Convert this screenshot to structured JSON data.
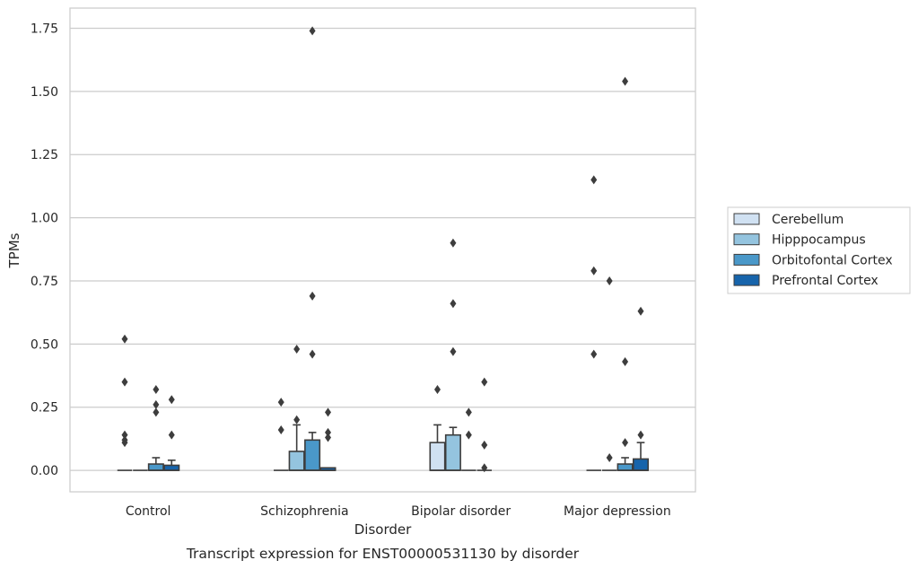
{
  "chart_data": {
    "type": "box",
    "title": "",
    "caption": "Transcript expression for ENST00000531130 by disorder",
    "xlabel": "Disorder",
    "ylabel": "TPMs",
    "ylim": [
      -0.085,
      1.83
    ],
    "yticks": [
      0.0,
      0.25,
      0.5,
      0.75,
      1.0,
      1.25,
      1.5,
      1.75
    ],
    "ytick_labels": [
      "0.00",
      "0.25",
      "0.50",
      "0.75",
      "1.00",
      "1.25",
      "1.50",
      "1.75"
    ],
    "grid": "horizontal",
    "legend_position": "right",
    "categories": [
      "Control",
      "Schizophrenia",
      "Bipolar disorder",
      "Major depression"
    ],
    "series": [
      {
        "name": "Cerebellum",
        "color": "#d0e1f2",
        "boxes": [
          {
            "q1": 0,
            "median": 0,
            "q3": 0,
            "whisker_low": 0,
            "whisker_high": 0,
            "outliers": [
              0.52,
              0.35,
              0.14,
              0.12,
              0.11
            ]
          },
          {
            "q1": 0,
            "median": 0,
            "q3": 0,
            "whisker_low": 0,
            "whisker_high": 0,
            "outliers": [
              0.27,
              0.16
            ]
          },
          {
            "q1": 0,
            "median": 0,
            "q3": 0.11,
            "whisker_low": 0,
            "whisker_high": 0.18,
            "outliers": [
              0.32
            ]
          },
          {
            "q1": 0,
            "median": 0,
            "q3": 0,
            "whisker_low": 0,
            "whisker_high": 0,
            "outliers": [
              1.15,
              0.79,
              0.46
            ]
          }
        ]
      },
      {
        "name": "Hipppocampus",
        "color": "#94c4df",
        "boxes": [
          {
            "q1": 0,
            "median": 0,
            "q3": 0,
            "whisker_low": 0,
            "whisker_high": 0,
            "outliers": []
          },
          {
            "q1": 0,
            "median": 0,
            "q3": 0.075,
            "whisker_low": 0,
            "whisker_high": 0.18,
            "outliers": [
              0.48,
              0.2
            ]
          },
          {
            "q1": 0,
            "median": 0,
            "q3": 0.14,
            "whisker_low": 0,
            "whisker_high": 0.17,
            "outliers": [
              0.9,
              0.66,
              0.47
            ]
          },
          {
            "q1": 0,
            "median": 0,
            "q3": 0,
            "whisker_low": 0,
            "whisker_high": 0,
            "outliers": [
              0.75,
              0.05
            ]
          }
        ]
      },
      {
        "name": "Orbitofontal Cortex",
        "color": "#4a98c9",
        "boxes": [
          {
            "q1": 0,
            "median": 0,
            "q3": 0.025,
            "whisker_low": 0,
            "whisker_high": 0.05,
            "outliers": [
              0.32,
              0.26,
              0.23
            ]
          },
          {
            "q1": 0,
            "median": 0,
            "q3": 0.12,
            "whisker_low": 0,
            "whisker_high": 0.15,
            "outliers": [
              1.74,
              0.69,
              0.46
            ]
          },
          {
            "q1": 0,
            "median": 0,
            "q3": 0,
            "whisker_low": 0,
            "whisker_high": 0,
            "outliers": [
              0.23,
              0.14
            ]
          },
          {
            "q1": 0,
            "median": 0,
            "q3": 0.025,
            "whisker_low": 0,
            "whisker_high": 0.05,
            "outliers": [
              1.54,
              0.43,
              0.11
            ]
          }
        ]
      },
      {
        "name": "Prefrontal Cortex",
        "color": "#1764ab",
        "boxes": [
          {
            "q1": 0,
            "median": 0,
            "q3": 0.02,
            "whisker_low": 0,
            "whisker_high": 0.04,
            "outliers": [
              0.28,
              0.14
            ]
          },
          {
            "q1": 0,
            "median": 0,
            "q3": 0.01,
            "whisker_low": 0,
            "whisker_high": 0.01,
            "outliers": [
              0.23,
              0.15,
              0.13
            ]
          },
          {
            "q1": 0,
            "median": 0,
            "q3": 0,
            "whisker_low": 0,
            "whisker_high": 0,
            "outliers": [
              0.35,
              0.1,
              0.01
            ]
          },
          {
            "q1": 0,
            "median": 0,
            "q3": 0.045,
            "whisker_low": 0,
            "whisker_high": 0.11,
            "outliers": [
              0.63,
              0.14
            ]
          }
        ]
      }
    ]
  }
}
